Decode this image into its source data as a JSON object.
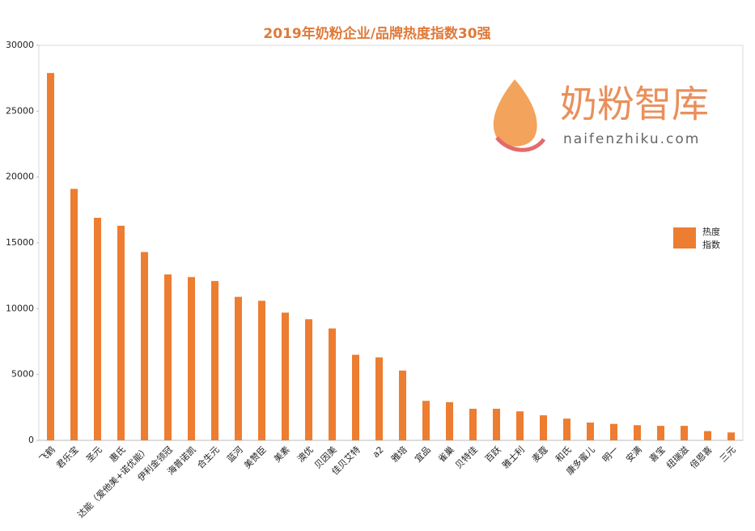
{
  "chart_data": {
    "type": "bar",
    "title": "2019年奶粉企业/品牌热度指数30强",
    "categories": [
      "飞鹤",
      "君乐宝",
      "圣元",
      "惠氏",
      "达能（爱他美+诺优能）",
      "伊利金领冠",
      "海普诺凯",
      "合生元",
      "蓝河",
      "美赞臣",
      "美素",
      "澳优",
      "贝因美",
      "佳贝艾特",
      "a2",
      "雅培",
      "宜品",
      "雀巢",
      "贝特佳",
      "百跃",
      "雅士利",
      "麦蔻",
      "和氏",
      "康多蜜儿",
      "明一",
      "安满",
      "喜宝",
      "纽瑞滋",
      "倍恩喜",
      "三元"
    ],
    "series": [
      {
        "name": "热度指数",
        "color": "#ed7d31",
        "values": [
          27900,
          19100,
          16900,
          16300,
          14300,
          12600,
          12400,
          12100,
          10900,
          10600,
          9700,
          9200,
          8500,
          6500,
          6300,
          5300,
          3000,
          2900,
          2400,
          2400,
          2200,
          1900,
          1650,
          1350,
          1250,
          1150,
          1100,
          1100,
          700,
          600
        ]
      }
    ],
    "ylim": [
      0,
      30000
    ],
    "yticks": [
      0,
      5000,
      10000,
      15000,
      20000,
      25000,
      30000
    ],
    "legend": "right"
  },
  "watermark": {
    "name": "奶粉智库",
    "url": "naifenzhiku.com"
  }
}
